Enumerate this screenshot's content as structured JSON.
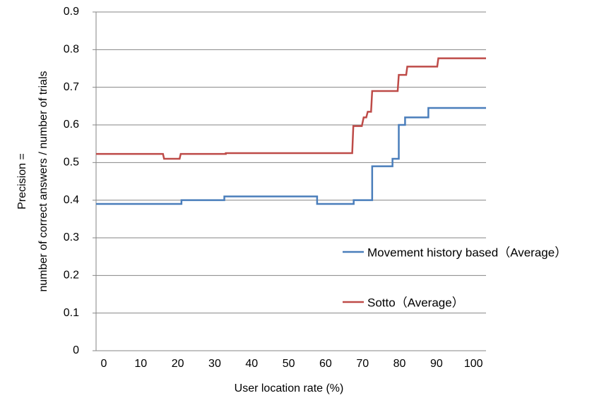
{
  "chart_data": {
    "type": "line",
    "x_label": "User location rate (%)",
    "y_label": [
      "Precision =",
      "number of correct answers / number of trials"
    ],
    "xlim": [
      -2.1,
      103.4
    ],
    "xticks": [
      0,
      10,
      20,
      30,
      40,
      50,
      60,
      70,
      80,
      90,
      100
    ],
    "ylim": [
      0,
      0.9
    ],
    "yticks": [
      0,
      0.1,
      0.2,
      0.3,
      0.4,
      0.5,
      0.6,
      0.7,
      0.8,
      0.9
    ],
    "grid": true,
    "legend": "center right",
    "series": [
      {
        "name": "Movement history based（Average）",
        "color": "#4a7ebb",
        "x": [
          -2.1,
          21,
          21,
          32.6,
          32.6,
          57.7,
          57.7,
          67.6,
          67.6,
          72.6,
          72.6,
          78.1,
          78.1,
          79.8,
          79.8,
          81.5,
          81.5,
          87.8,
          87.8,
          103.4
        ],
        "values": [
          0.39,
          0.39,
          0.4,
          0.4,
          0.41,
          0.41,
          0.39,
          0.39,
          0.4,
          0.4,
          0.49,
          0.49,
          0.51,
          0.51,
          0.6,
          0.6,
          0.62,
          0.62,
          0.645,
          0.645
        ]
      },
      {
        "name": "Sotto（Average）",
        "color": "#be4b48",
        "x": [
          -2.1,
          16,
          16.3,
          20.5,
          20.8,
          33,
          33,
          67.2,
          67.5,
          69.8,
          70.3,
          71,
          71.4,
          72.3,
          72.6,
          79.5,
          79.8,
          81.8,
          82.1,
          90.2,
          90.5,
          103.4
        ],
        "values": [
          0.523,
          0.523,
          0.51,
          0.51,
          0.523,
          0.523,
          0.525,
          0.525,
          0.597,
          0.597,
          0.62,
          0.62,
          0.635,
          0.635,
          0.69,
          0.69,
          0.733,
          0.733,
          0.755,
          0.755,
          0.777,
          0.777
        ]
      }
    ]
  }
}
